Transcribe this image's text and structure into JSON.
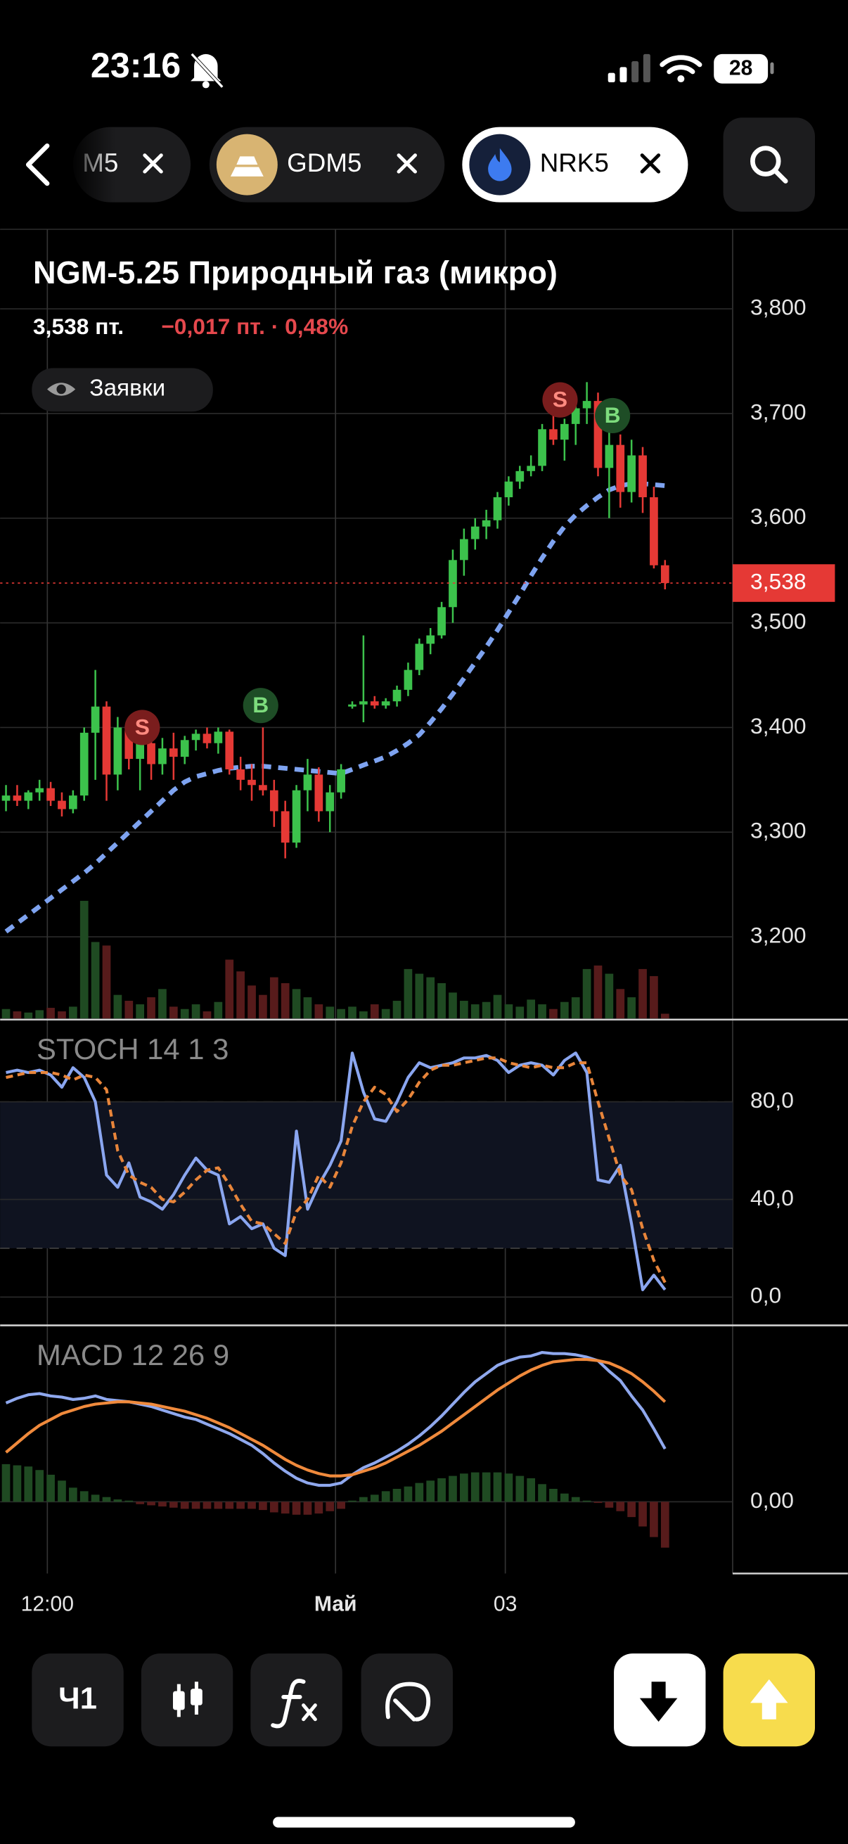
{
  "status_bar": {
    "time": "23:16",
    "battery": "28"
  },
  "tabs": [
    {
      "label": "M5"
    },
    {
      "label": "GDM5"
    },
    {
      "label": "NRK5"
    }
  ],
  "header": {
    "title": "NGM-5.25 Природный газ (микро)",
    "price": "3,538 пт.",
    "change": "−0,017 пт. · 0,48%",
    "orders_button": "Заявки"
  },
  "toolbar": {
    "interval": "Ч1"
  },
  "chart_data": [
    {
      "type": "candlestick",
      "grid": true,
      "ylim": [
        3122,
        3876
      ],
      "yticks": [
        {
          "value": 3200,
          "label": "3,200"
        },
        {
          "value": 3300,
          "label": "3,300"
        },
        {
          "value": 3400,
          "label": "3,400"
        },
        {
          "value": 3500,
          "label": "3,500"
        },
        {
          "value": 3600,
          "label": "3,600"
        },
        {
          "value": 3700,
          "label": "3,700"
        },
        {
          "value": 3800,
          "label": "3,800"
        }
      ],
      "xticks": [
        {
          "value": 3.7,
          "label": "12:00"
        },
        {
          "value": 29.5,
          "label": "Май"
        },
        {
          "value": 44.7,
          "label": "03"
        }
      ],
      "up_color": "#3cc24c",
      "down_color": "#e53935",
      "open": [
        3330,
        3335,
        3330,
        3338,
        3342,
        3330,
        3322,
        3335,
        3395,
        3420,
        3355,
        3400,
        3370,
        3385,
        3365,
        3380,
        3372,
        3388,
        3394,
        3385,
        3396,
        3360,
        3350,
        3345,
        3340,
        3320,
        3290,
        3340,
        3355,
        3320,
        3338,
        3420,
        3422,
        3425,
        3421,
        3425,
        3436,
        3455,
        3480,
        3488,
        3515,
        3560,
        3580,
        3592,
        3598,
        3620,
        3635,
        3645,
        3650,
        3685,
        3675,
        3690,
        3705,
        3712,
        3648,
        3670,
        3625,
        3660,
        3620,
        3555
      ],
      "high": [
        3345,
        3345,
        3340,
        3350,
        3348,
        3338,
        3340,
        3400,
        3455,
        3425,
        3410,
        3410,
        3395,
        3390,
        3390,
        3395,
        3392,
        3398,
        3400,
        3400,
        3398,
        3372,
        3365,
        3400,
        3350,
        3330,
        3345,
        3370,
        3362,
        3345,
        3365,
        3425,
        3488,
        3430,
        3428,
        3440,
        3462,
        3485,
        3495,
        3520,
        3570,
        3590,
        3600,
        3608,
        3625,
        3640,
        3650,
        3660,
        3690,
        3700,
        3695,
        3715,
        3730,
        3720,
        3690,
        3680,
        3675,
        3668,
        3630,
        3560
      ],
      "low": [
        3320,
        3325,
        3322,
        3330,
        3325,
        3315,
        3318,
        3330,
        3350,
        3330,
        3340,
        3360,
        3340,
        3350,
        3355,
        3350,
        3365,
        3378,
        3380,
        3375,
        3355,
        3340,
        3330,
        3335,
        3305,
        3275,
        3285,
        3320,
        3310,
        3300,
        3332,
        3418,
        3405,
        3418,
        3418,
        3420,
        3430,
        3450,
        3470,
        3485,
        3500,
        3545,
        3570,
        3580,
        3590,
        3612,
        3628,
        3640,
        3645,
        3670,
        3655,
        3670,
        3690,
        3640,
        3600,
        3610,
        3615,
        3605,
        3552,
        3532
      ],
      "close": [
        3335,
        3330,
        3338,
        3342,
        3330,
        3322,
        3335,
        3395,
        3420,
        3355,
        3400,
        3370,
        3385,
        3365,
        3380,
        3372,
        3388,
        3394,
        3385,
        3396,
        3360,
        3350,
        3345,
        3340,
        3320,
        3290,
        3340,
        3355,
        3320,
        3338,
        3360,
        3422,
        3425,
        3421,
        3425,
        3436,
        3455,
        3480,
        3488,
        3515,
        3560,
        3580,
        3592,
        3598,
        3620,
        3635,
        3645,
        3650,
        3685,
        3675,
        3690,
        3705,
        3712,
        3648,
        3670,
        3625,
        3660,
        3620,
        3555,
        3538
      ],
      "volume": {
        "up_color": "#1f4a22",
        "down_color": "#571b1b",
        "values": [
          8,
          6,
          5,
          7,
          9,
          6,
          10,
          100,
          65,
          62,
          20,
          15,
          12,
          18,
          25,
          10,
          8,
          12,
          6,
          14,
          50,
          40,
          28,
          20,
          35,
          30,
          25,
          18,
          12,
          10,
          8,
          10,
          6,
          12,
          8,
          15,
          42,
          38,
          35,
          30,
          22,
          15,
          12,
          14,
          20,
          12,
          10,
          16,
          12,
          8,
          14,
          18,
          42,
          45,
          38,
          25,
          18,
          42,
          36,
          4
        ]
      },
      "moving_average": {
        "color": "#7ea3f0",
        "values": [
          3205,
          3213,
          3221,
          3229,
          3237,
          3245,
          3253,
          3261,
          3270,
          3280,
          3290,
          3300,
          3310,
          3320,
          3330,
          3340,
          3348,
          3353,
          3356,
          3359,
          3361,
          3362,
          3363,
          3363,
          3362,
          3361,
          3360,
          3359,
          3358,
          3357,
          3356,
          3360,
          3364,
          3368,
          3372,
          3378,
          3385,
          3393,
          3405,
          3418,
          3432,
          3447,
          3462,
          3477,
          3493,
          3510,
          3527,
          3545,
          3562,
          3578,
          3592,
          3603,
          3612,
          3620,
          3627,
          3631,
          3633,
          3633,
          3632,
          3631
        ]
      },
      "markers": [
        {
          "label": "S",
          "index": 12.2,
          "value": 3400,
          "color": "#7a1d1d",
          "text_color": "#ff8a80"
        },
        {
          "label": "B",
          "index": 22.8,
          "value": 3421,
          "color": "#1e4d26",
          "text_color": "#7ddc7d"
        },
        {
          "label": "S",
          "index": 49.6,
          "value": 3713,
          "color": "#7a1d1d",
          "text_color": "#ff8a80"
        },
        {
          "label": "B",
          "index": 54.3,
          "value": 3698,
          "color": "#1e4d26",
          "text_color": "#7ddc7d"
        }
      ],
      "last_price": {
        "value": 3538,
        "label": "3,538",
        "color": "#e53935"
      }
    },
    {
      "type": "line",
      "title": "STOCH 14 1 3",
      "grid": true,
      "ylim": [
        -11.6,
        113.7
      ],
      "yticks": [
        {
          "value": 0,
          "label": "0,0"
        },
        {
          "value": 40,
          "label": "40,0"
        },
        {
          "value": 80,
          "label": "80,0"
        }
      ],
      "band": [
        20,
        80
      ],
      "series": [
        {
          "color": "#8aa6f0",
          "values": [
            92,
            93,
            92,
            93,
            91,
            86,
            94,
            90,
            80,
            50,
            45,
            55,
            41,
            39,
            36,
            42,
            50,
            57,
            52,
            50,
            30,
            33,
            28,
            30,
            20,
            17,
            68,
            36,
            46,
            54,
            64,
            100,
            84,
            73,
            72,
            80,
            90,
            96,
            94,
            95,
            96,
            98,
            98,
            99,
            97,
            92,
            95,
            96,
            95,
            91,
            97,
            100,
            92,
            48,
            47,
            54,
            30,
            3,
            9,
            3
          ]
        },
        {
          "color": "#e8853a",
          "dashed": true,
          "values": [
            90,
            91,
            92,
            92,
            92,
            91,
            89,
            91,
            90,
            85,
            60,
            50,
            47,
            45,
            40,
            39,
            43,
            48,
            52,
            53,
            46,
            38,
            31,
            30,
            26,
            22,
            35,
            40,
            50,
            45,
            55,
            70,
            80,
            86,
            83,
            76,
            81,
            88,
            93,
            95,
            95,
            96,
            97,
            98,
            98,
            96,
            95,
            94,
            95,
            94,
            94,
            96,
            96,
            80,
            65,
            50,
            44,
            28,
            15,
            6
          ]
        }
      ]
    },
    {
      "type": "combo",
      "title": "MACD 12 26 9",
      "grid": true,
      "ylim": [
        -6.1,
        15
      ],
      "yticks": [
        {
          "value": 0,
          "label": "0,00"
        }
      ],
      "series": [
        {
          "type": "bar",
          "color": "#1f4a22",
          "negative_color": "#571b1b",
          "values": [
            3.2,
            3.1,
            3.0,
            2.7,
            2.3,
            1.8,
            1.2,
            0.9,
            0.6,
            0.4,
            0.2,
            0.1,
            -0.2,
            -0.3,
            -0.4,
            -0.5,
            -0.6,
            -0.6,
            -0.6,
            -0.6,
            -0.6,
            -0.6,
            -0.6,
            -0.7,
            -0.9,
            -1.0,
            -1.1,
            -1.1,
            -1.0,
            -0.8,
            -0.6,
            0.1,
            0.4,
            0.6,
            0.9,
            1.1,
            1.3,
            1.6,
            1.8,
            2.0,
            2.2,
            2.4,
            2.5,
            2.5,
            2.5,
            2.4,
            2.2,
            2.0,
            1.5,
            1.1,
            0.7,
            0.4,
            0.1,
            -0.1,
            -0.5,
            -0.8,
            -1.3,
            -2.1,
            -3.0,
            -3.9
          ]
        },
        {
          "type": "line",
          "color": "#8fa8ee",
          "values": [
            8.4,
            8.8,
            9.1,
            9.2,
            9.0,
            8.9,
            8.7,
            8.8,
            9.0,
            8.7,
            8.6,
            8.5,
            8.3,
            8.1,
            7.8,
            7.5,
            7.2,
            7.0,
            6.6,
            6.2,
            5.8,
            5.3,
            4.8,
            4.1,
            3.3,
            2.6,
            2.0,
            1.6,
            1.4,
            1.4,
            1.6,
            2.3,
            2.9,
            3.3,
            3.8,
            4.3,
            4.9,
            5.6,
            6.4,
            7.3,
            8.3,
            9.3,
            10.2,
            10.9,
            11.6,
            12.0,
            12.3,
            12.4,
            12.7,
            12.6,
            12.6,
            12.5,
            12.3,
            12.0,
            11.1,
            10.3,
            9.0,
            7.8,
            6.2,
            4.5
          ]
        },
        {
          "type": "line",
          "color": "#f08a3c",
          "values": [
            4.2,
            5.0,
            5.8,
            6.5,
            7.0,
            7.5,
            7.8,
            8.1,
            8.3,
            8.4,
            8.5,
            8.5,
            8.4,
            8.3,
            8.1,
            7.9,
            7.7,
            7.4,
            7.1,
            6.7,
            6.3,
            5.8,
            5.3,
            4.8,
            4.2,
            3.6,
            3.1,
            2.7,
            2.4,
            2.2,
            2.2,
            2.3,
            2.6,
            2.9,
            3.3,
            3.8,
            4.3,
            4.8,
            5.4,
            6.0,
            6.7,
            7.4,
            8.1,
            8.8,
            9.5,
            10.1,
            10.7,
            11.2,
            11.6,
            11.9,
            12.0,
            12.1,
            12.1,
            12.0,
            11.8,
            11.4,
            10.9,
            10.2,
            9.4,
            8.5
          ]
        }
      ]
    }
  ]
}
